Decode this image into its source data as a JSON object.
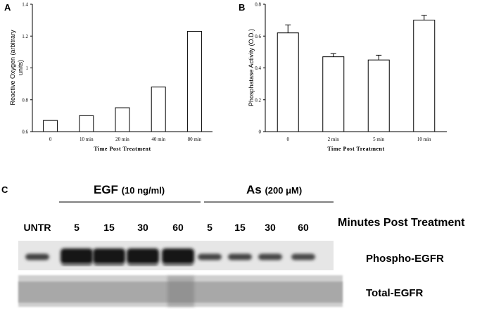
{
  "chart_data": [
    {
      "panel": "A",
      "type": "bar",
      "categories": [
        "0",
        "10 min",
        "20 min",
        "40 min",
        "80 min"
      ],
      "values": [
        0.67,
        0.7,
        0.75,
        0.88,
        1.23
      ],
      "xlabel": "Time Post Treatment",
      "ylabel": "Reactive Oxygen (arbitrary units)",
      "ylabel_lines": [
        "Reactive Oxygen (arbitrary",
        "units)"
      ],
      "ylim": [
        0.6,
        1.4
      ],
      "yticks": [
        "0.6",
        "0.8",
        "1",
        "1.2",
        "1.4"
      ],
      "ytick_values": [
        0.6,
        0.8,
        1.0,
        1.2,
        1.4
      ],
      "grid": false,
      "legend": "none"
    },
    {
      "panel": "B",
      "type": "bar",
      "categories": [
        "0",
        "2 min",
        "5 min",
        "10 min"
      ],
      "values": [
        0.62,
        0.47,
        0.45,
        0.7
      ],
      "errors": [
        0.05,
        0.02,
        0.03,
        0.03
      ],
      "xlabel": "Time Post Treatment",
      "ylabel": "Phosphatase Activity (O.D.)",
      "ylim": [
        0,
        0.8
      ],
      "yticks": [
        "0",
        "0.2",
        "0.4",
        "0.6",
        "0.8"
      ],
      "ytick_values": [
        0,
        0.2,
        0.4,
        0.6,
        0.8
      ],
      "grid": false,
      "legend": "none"
    }
  ],
  "panel_c": {
    "letter": "C",
    "groups": [
      {
        "name": "EGF",
        "conc": "(10 ng/ml)"
      },
      {
        "name": "As",
        "conc": "(200 μM)"
      }
    ],
    "lanes": [
      "UNTR",
      "5",
      "15",
      "30",
      "60",
      "5",
      "15",
      "30",
      "60"
    ],
    "lanes_header": "Minutes Post Treatment",
    "blots": [
      "Phospho-EGFR",
      "Total-EGFR"
    ],
    "phospho_intensity": [
      0.35,
      1.0,
      1.0,
      0.95,
      1.0,
      0.3,
      0.3,
      0.28,
      0.25
    ]
  }
}
